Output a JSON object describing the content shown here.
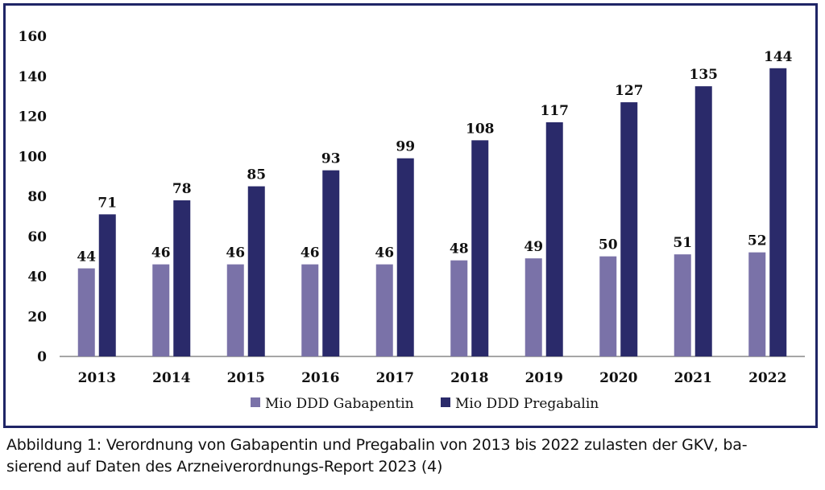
{
  "chart_data": {
    "type": "bar",
    "categories": [
      "2013",
      "2014",
      "2015",
      "2016",
      "2017",
      "2018",
      "2019",
      "2020",
      "2021",
      "2022"
    ],
    "series": [
      {
        "name": "Mio DDD Gabapentin",
        "values": [
          44,
          46,
          46,
          46,
          46,
          48,
          49,
          50,
          51,
          52
        ],
        "color": "#7a72a8"
      },
      {
        "name": "Mio DDD Pregabalin",
        "values": [
          71,
          78,
          85,
          93,
          99,
          108,
          117,
          127,
          135,
          144
        ],
        "color": "#2a2a6a"
      }
    ],
    "ylim": [
      0,
      160
    ],
    "yticks": [
      0,
      20,
      40,
      60,
      80,
      100,
      120,
      140,
      160
    ],
    "grid": false,
    "legend": "bottom"
  },
  "caption": {
    "line1": "Abbildung 1: Verordnung von Gabapentin und Pregabalin von 2013 bis 2022 zulasten der GKV, ba-",
    "line2": "sierend auf Daten des Arzneiverordnungs-Report 2023 (4)"
  },
  "colors": {
    "frame": "#1f2566",
    "axis": "#888888"
  }
}
